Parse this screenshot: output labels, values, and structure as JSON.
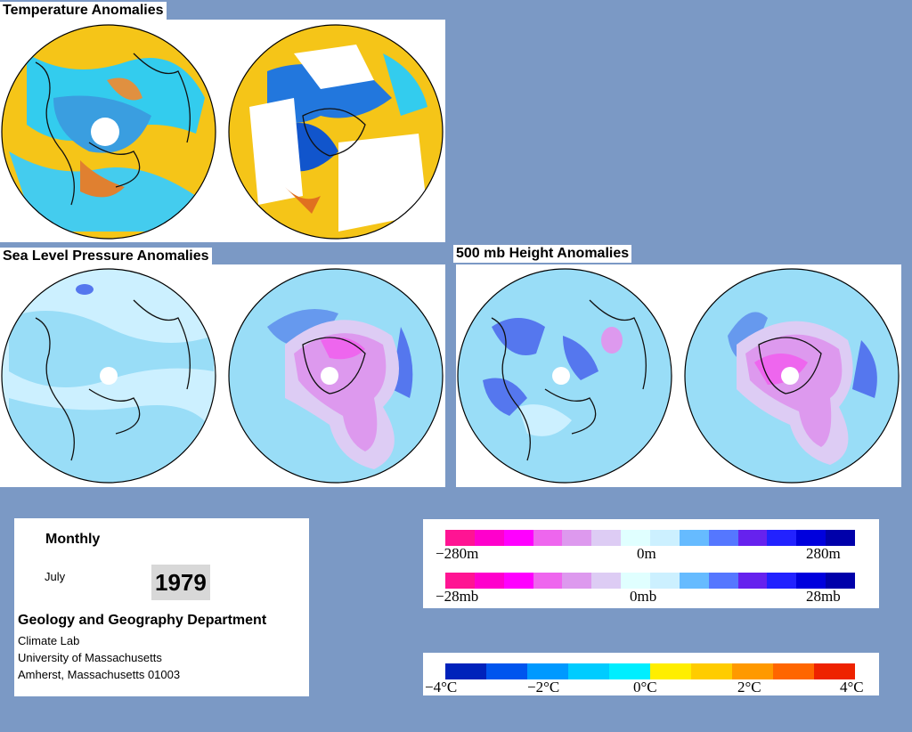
{
  "sections": {
    "temperature": "Temperature Anomalies",
    "slp": "Sea Level Pressure Anomalies",
    "height500": "500 mb Height Anomalies"
  },
  "info": {
    "period": "Monthly",
    "month": "July",
    "year": "1979",
    "department": "Geology and Geography Department",
    "lab": "Climate Lab",
    "university": "University of Massachusetts",
    "address": "Amherst, Massachusetts 01003"
  },
  "legends": {
    "height": {
      "min": "−280m",
      "mid": "0m",
      "max": "280m"
    },
    "pressure": {
      "min": "−28mb",
      "mid": "0mb",
      "max": "28mb"
    },
    "temperature": {
      "t1": "−4°C",
      "t2": "−2°C",
      "t3": "0°C",
      "t4": "2°C",
      "t5": "4°C"
    }
  },
  "colors": {
    "background": "#7b99c5",
    "anomaly_scale": [
      "#ff1493",
      "#ff00cc",
      "#ff00ff",
      "#ee66ee",
      "#dd99ee",
      "#ddccf4",
      "#e0ffff",
      "#ccf0ff",
      "#66bbff",
      "#5577ff",
      "#6622ee",
      "#2222ff",
      "#0000dd",
      "#0000aa"
    ],
    "temperature_scale": [
      "#0022bb",
      "#0055ee",
      "#0099ff",
      "#00ccff",
      "#00eeff",
      "#ffee00",
      "#ffcc00",
      "#ff9900",
      "#ff6600",
      "#ee2200"
    ]
  }
}
